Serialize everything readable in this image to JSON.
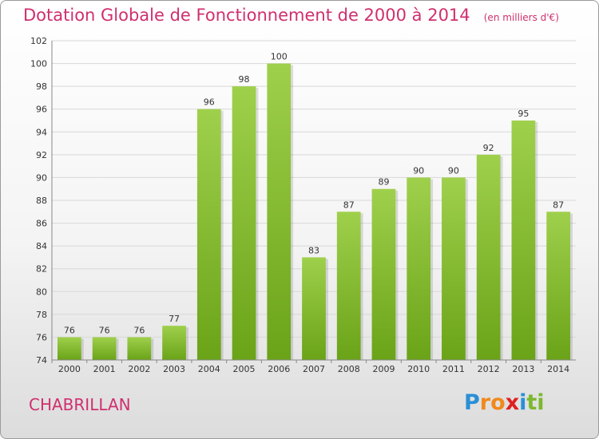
{
  "chart_data": {
    "type": "bar",
    "title": "Dotation Globale de Fonctionnement de 2000 à 2014",
    "subtitle": "(en milliers d'€)",
    "categories": [
      "2000",
      "2001",
      "2002",
      "2003",
      "2004",
      "2005",
      "2006",
      "2007",
      "2008",
      "2009",
      "2010",
      "2011",
      "2012",
      "2013",
      "2014"
    ],
    "values": [
      76,
      76,
      76,
      77,
      96,
      98,
      100,
      83,
      87,
      89,
      90,
      90,
      92,
      95,
      87
    ],
    "ylim": [
      74,
      102
    ],
    "yticks": [
      74,
      76,
      78,
      80,
      82,
      84,
      86,
      88,
      90,
      92,
      94,
      96,
      98,
      100,
      102
    ],
    "grid": true,
    "colors": {
      "bar_light": "#9fd04c",
      "bar_dark": "#6aa318",
      "title": "#d02f6e",
      "grid": "#d8d8d8"
    }
  },
  "footer": {
    "commune": "CHABRILLAN",
    "logo": {
      "letters": [
        "P",
        "r",
        "o",
        "x",
        "i",
        "t",
        "i"
      ],
      "colors": [
        "#2a8fd6",
        "#f08a1c",
        "#f08a1c",
        "#e02020",
        "#2a8fd6",
        "#7cb82f",
        "#7cb82f"
      ]
    }
  }
}
